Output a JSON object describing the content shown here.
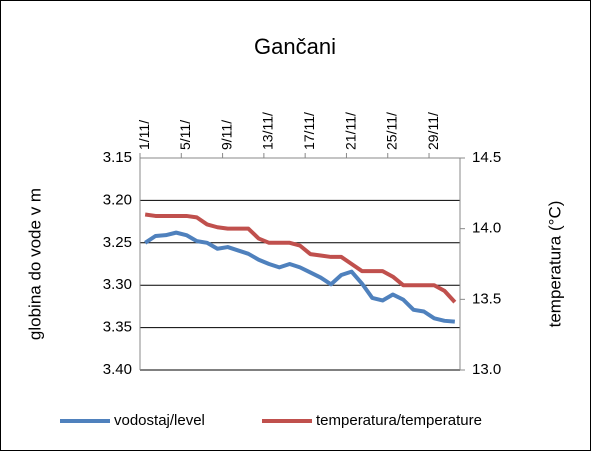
{
  "chart_data": {
    "type": "line",
    "title": "Gančani",
    "y_label": "globina do vode v m",
    "y2_label": "temperatura (°C)",
    "categories": [
      "1/11/",
      null,
      null,
      null,
      "5/11/",
      null,
      null,
      null,
      "9/11/",
      null,
      null,
      null,
      "13/11/",
      null,
      null,
      null,
      "17/11/",
      null,
      null,
      null,
      "21/11/",
      null,
      null,
      null,
      "25/11/",
      null,
      null,
      null,
      "29/11/",
      null,
      null
    ],
    "series": [
      {
        "name": "vodostaj/level",
        "color": "#4f81bd",
        "values": [
          3.25,
          3.242,
          3.241,
          3.238,
          3.241,
          3.248,
          3.25,
          3.257,
          3.255,
          3.259,
          3.263,
          3.27,
          3.275,
          3.279,
          3.275,
          3.279,
          3.285,
          3.291,
          3.299,
          3.288,
          3.284,
          3.298,
          3.315,
          3.318,
          3.311,
          3.317,
          3.329,
          3.331,
          3.339,
          3.342,
          3.343
        ]
      },
      {
        "name": "temperatura/temperature",
        "color": "#c0504d",
        "axis": "y2",
        "values": [
          14.1,
          14.09,
          14.09,
          14.09,
          14.09,
          14.08,
          14.03,
          14.01,
          14.0,
          14.0,
          14.0,
          13.93,
          13.9,
          13.9,
          13.9,
          13.88,
          13.82,
          13.81,
          13.8,
          13.8,
          13.75,
          13.7,
          13.7,
          13.7,
          13.66,
          13.6,
          13.6,
          13.6,
          13.6,
          13.56,
          13.48
        ]
      }
    ],
    "ylim": [
      3.15,
      3.4
    ],
    "y_inverted": true,
    "yticks": [
      3.15,
      {
        "value": 3.2,
        "label": "3.20"
      },
      3.25,
      {
        "value": 3.3,
        "label": "3.30"
      },
      3.35,
      {
        "value": 3.4,
        "label": "3.40"
      }
    ],
    "y2lim": [
      13,
      14.5
    ],
    "y2ticks": [
      {
        "value": 13,
        "label": "13.0"
      },
      13.5,
      {
        "value": 14,
        "label": "14.0"
      },
      14.5
    ],
    "grid": true,
    "legend": "bottom"
  }
}
